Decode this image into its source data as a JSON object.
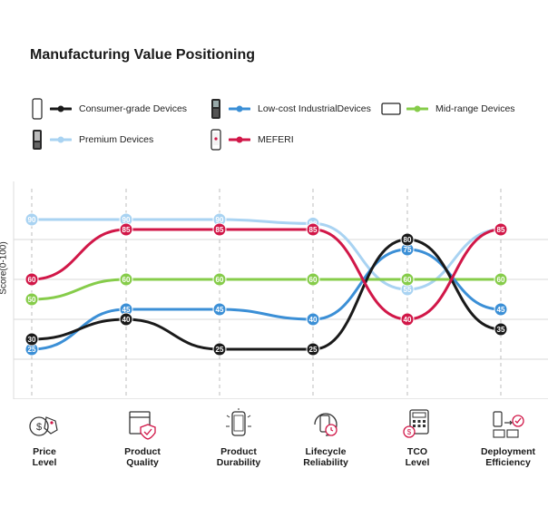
{
  "chart_data": {
    "type": "line",
    "title": "Manufacturing Value Positioning",
    "ylabel": "Score(0-100)",
    "ylim": [
      0,
      100
    ],
    "grid": true,
    "categories": [
      "Price Level",
      "Product Quality",
      "Product Durability",
      "Lifecycle Reliability",
      "TCO Level",
      "Deployment Efficiency"
    ],
    "series": [
      {
        "name": "Consumer-grade Devices",
        "color": "#1a1a1a",
        "values": [
          30,
          40,
          25,
          25,
          80,
          35
        ],
        "icon": "phone-outline-icon"
      },
      {
        "name": "Low-cost IndustrialDevices",
        "color": "#3b8fd6",
        "values": [
          25,
          45,
          45,
          40,
          75,
          45
        ],
        "icon": "rugged-phone-icon"
      },
      {
        "name": "Mid-range Devices",
        "color": "#86cc4a",
        "values": [
          50,
          60,
          60,
          60,
          60,
          60
        ],
        "icon": "tablet-icon"
      },
      {
        "name": "Premium Devices",
        "color": "#a9d3f2",
        "values": [
          90,
          90,
          90,
          88,
          55,
          85
        ],
        "icon": "premium-phone-icon"
      },
      {
        "name": "MEFERI",
        "color": "#d11748",
        "values": [
          60,
          85,
          85,
          85,
          40,
          85
        ],
        "icon": "meferi-phone-icon"
      }
    ],
    "category_icons": [
      "price-tag-icon",
      "quality-box-icon",
      "durability-phone-icon",
      "lifecycle-icon",
      "calculator-icon",
      "deployment-icon"
    ]
  }
}
